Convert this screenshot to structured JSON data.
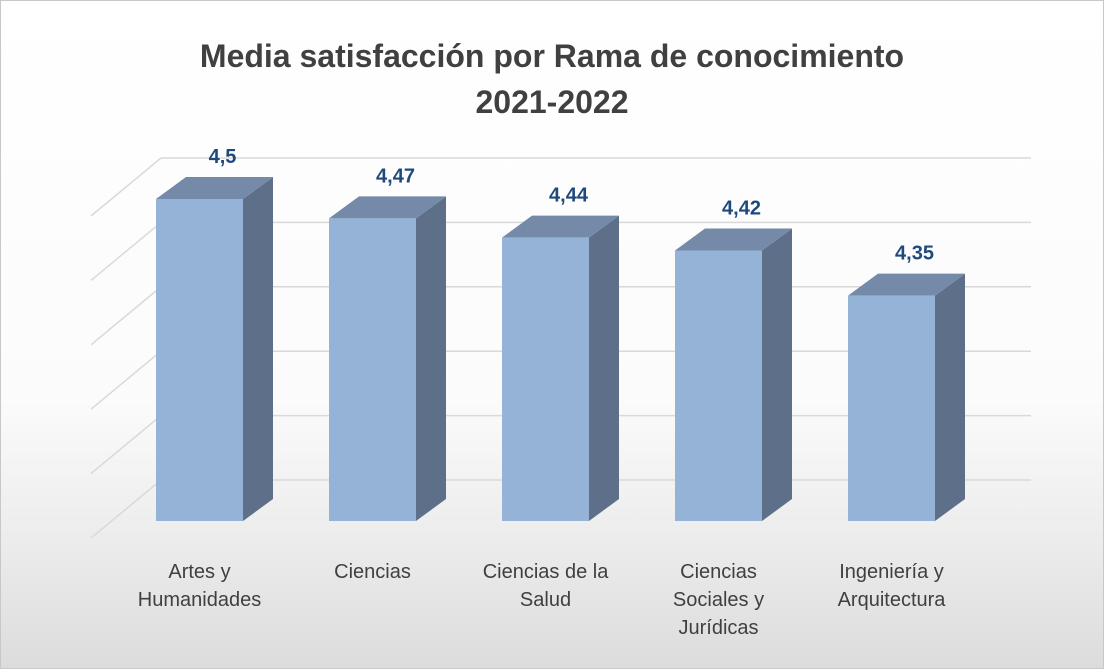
{
  "chart_data": {
    "type": "bar3d",
    "title": "Media satisfacción por Rama de conocimiento 2021-2022",
    "categories": [
      "Artes y Humanidades",
      "Ciencias",
      "Ciencias de la Salud",
      "Ciencias Sociales y Jurídicas",
      "Ingeniería y Arquitectura"
    ],
    "values": [
      4.5,
      4.47,
      4.44,
      4.42,
      4.35
    ],
    "value_labels": [
      "4,5",
      "4,47",
      "4,44",
      "4,42",
      "4,35"
    ],
    "color": "#95b3d7",
    "ylim": [
      4.0,
      4.5
    ],
    "yticks": [
      4.0,
      4.1,
      4.2,
      4.3,
      4.4,
      4.5
    ],
    "grid": true
  }
}
